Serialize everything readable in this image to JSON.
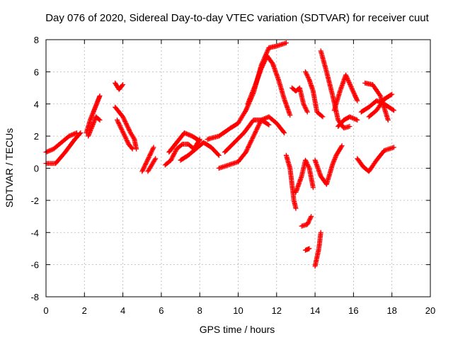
{
  "chart_data": {
    "type": "scatter",
    "title": "Day 076 of 2020, Sidereal Day-to-day VTEC variation (SDTVAR) for receiver cuut",
    "xlabel": "GPS time / hours",
    "ylabel": "SDTVAR / TECUs",
    "xlim": [
      0,
      20
    ],
    "ylim": [
      -8,
      8
    ],
    "xticks": [
      "0",
      "2",
      "4",
      "6",
      "8",
      "10",
      "12",
      "14",
      "16",
      "18",
      "20"
    ],
    "yticks": [
      "-8",
      "-6",
      "-4",
      "-2",
      "0",
      "2",
      "4",
      "6",
      "8"
    ],
    "grid": true,
    "marker": "plus",
    "color": "#ff0000",
    "tracks": [
      {
        "name": "t01",
        "points": [
          [
            0.0,
            1.0
          ],
          [
            0.4,
            1.2
          ],
          [
            0.8,
            1.6
          ],
          [
            1.2,
            2.0
          ],
          [
            1.6,
            2.2
          ]
        ]
      },
      {
        "name": "t02",
        "points": [
          [
            0.0,
            0.3
          ],
          [
            0.5,
            0.3
          ],
          [
            1.0,
            1.0
          ],
          [
            1.5,
            1.8
          ],
          [
            1.8,
            2.2
          ]
        ]
      },
      {
        "name": "t03",
        "points": [
          [
            2.1,
            2.2
          ],
          [
            2.3,
            3.0
          ],
          [
            2.5,
            3.6
          ],
          [
            2.7,
            4.2
          ],
          [
            2.8,
            4.5
          ]
        ]
      },
      {
        "name": "t04",
        "points": [
          [
            2.2,
            2.0
          ],
          [
            2.4,
            2.6
          ],
          [
            2.6,
            3.2
          ],
          [
            2.8,
            3.0
          ]
        ]
      },
      {
        "name": "t05",
        "points": [
          [
            3.6,
            5.3
          ],
          [
            3.8,
            4.9
          ],
          [
            4.0,
            5.2
          ]
        ]
      },
      {
        "name": "t06",
        "points": [
          [
            3.6,
            3.8
          ],
          [
            3.8,
            3.5
          ],
          [
            4.0,
            3.2
          ],
          [
            4.2,
            2.7
          ],
          [
            4.4,
            2.2
          ],
          [
            4.6,
            1.8
          ],
          [
            4.7,
            1.2
          ]
        ]
      },
      {
        "name": "t07",
        "points": [
          [
            3.7,
            3.0
          ],
          [
            3.9,
            2.5
          ],
          [
            4.1,
            2.0
          ],
          [
            4.3,
            1.5
          ],
          [
            4.5,
            1.2
          ]
        ]
      },
      {
        "name": "t08",
        "points": [
          [
            5.0,
            -0.2
          ],
          [
            5.2,
            0.3
          ],
          [
            5.4,
            0.8
          ],
          [
            5.6,
            1.3
          ]
        ]
      },
      {
        "name": "t09",
        "points": [
          [
            5.3,
            -0.2
          ],
          [
            5.5,
            0.2
          ],
          [
            5.7,
            0.6
          ]
        ]
      },
      {
        "name": "t10",
        "points": [
          [
            6.2,
            0.2
          ],
          [
            6.5,
            0.5
          ],
          [
            6.8,
            1.2
          ],
          [
            7.1,
            1.5
          ],
          [
            7.4,
            1.5
          ],
          [
            7.7,
            1.2
          ],
          [
            8.0,
            1.8
          ]
        ]
      },
      {
        "name": "t11",
        "points": [
          [
            6.4,
            1.0
          ],
          [
            6.8,
            1.6
          ],
          [
            7.2,
            2.2
          ],
          [
            7.6,
            2.0
          ],
          [
            8.0,
            1.7
          ]
        ]
      },
      {
        "name": "t12",
        "points": [
          [
            7.0,
            0.5
          ],
          [
            7.4,
            0.8
          ],
          [
            7.8,
            1.2
          ],
          [
            8.2,
            1.6
          ],
          [
            8.6,
            1.3
          ],
          [
            9.0,
            0.8
          ]
        ]
      },
      {
        "name": "t13",
        "points": [
          [
            8.4,
            1.8
          ],
          [
            9.0,
            2.0
          ],
          [
            9.6,
            2.5
          ],
          [
            10.0,
            2.8
          ],
          [
            10.4,
            3.6
          ],
          [
            10.8,
            4.7
          ],
          [
            11.2,
            6.4
          ],
          [
            11.6,
            7.5
          ],
          [
            12.0,
            7.6
          ],
          [
            12.5,
            7.8
          ]
        ]
      },
      {
        "name": "t14",
        "points": [
          [
            9.0,
            0.0
          ],
          [
            9.5,
            0.2
          ],
          [
            10.0,
            0.4
          ],
          [
            10.4,
            1.0
          ],
          [
            10.8,
            2.0
          ],
          [
            11.2,
            3.0
          ],
          [
            11.6,
            3.2
          ],
          [
            12.0,
            2.8
          ],
          [
            12.4,
            2.2
          ]
        ]
      },
      {
        "name": "t15",
        "points": [
          [
            9.3,
            1.0
          ],
          [
            9.8,
            1.6
          ],
          [
            10.3,
            2.2
          ],
          [
            10.8,
            3.0
          ],
          [
            11.2,
            3.0
          ],
          [
            11.6,
            2.7
          ]
        ]
      },
      {
        "name": "t16",
        "points": [
          [
            10.5,
            4.0
          ],
          [
            10.9,
            5.2
          ],
          [
            11.2,
            6.2
          ],
          [
            11.5,
            7.0
          ],
          [
            11.8,
            6.5
          ],
          [
            12.1,
            5.5
          ],
          [
            12.4,
            4.3
          ],
          [
            12.7,
            3.3
          ]
        ]
      },
      {
        "name": "t17",
        "points": [
          [
            12.5,
            0.8
          ],
          [
            12.7,
            0.0
          ],
          [
            12.9,
            -2.0
          ],
          [
            13.0,
            -2.5
          ]
        ]
      },
      {
        "name": "t18",
        "points": [
          [
            12.8,
            5.0
          ],
          [
            13.0,
            4.8
          ],
          [
            13.2,
            5.0
          ],
          [
            13.4,
            4.0
          ],
          [
            13.6,
            3.5
          ]
        ]
      },
      {
        "name": "t19",
        "points": [
          [
            13.0,
            -1.5
          ],
          [
            13.3,
            -0.5
          ],
          [
            13.5,
            0.5
          ],
          [
            13.7,
            0.0
          ],
          [
            13.9,
            -1.2
          ]
        ]
      },
      {
        "name": "t20",
        "points": [
          [
            13.3,
            -3.6
          ],
          [
            13.6,
            -3.5
          ],
          [
            13.8,
            -3.0
          ]
        ]
      },
      {
        "name": "t21",
        "points": [
          [
            13.5,
            -5.1
          ],
          [
            13.7,
            -5.0
          ]
        ]
      },
      {
        "name": "t22",
        "points": [
          [
            14.0,
            -6.1
          ],
          [
            14.2,
            -5.0
          ],
          [
            14.3,
            -4.0
          ]
        ]
      },
      {
        "name": "t23",
        "points": [
          [
            13.5,
            6.0
          ],
          [
            13.7,
            5.5
          ],
          [
            13.9,
            4.8
          ],
          [
            14.1,
            3.5
          ],
          [
            14.4,
            3.2
          ]
        ]
      },
      {
        "name": "t24",
        "points": [
          [
            14.0,
            0.5
          ],
          [
            14.3,
            -0.5
          ],
          [
            14.6,
            -1.0
          ],
          [
            14.9,
            0.2
          ],
          [
            15.1,
            0.8
          ],
          [
            15.4,
            1.4
          ]
        ]
      },
      {
        "name": "t25",
        "points": [
          [
            14.3,
            7.3
          ],
          [
            14.6,
            6.0
          ],
          [
            14.9,
            4.6
          ],
          [
            15.2,
            3.0
          ],
          [
            15.5,
            2.5
          ],
          [
            15.8,
            2.6
          ]
        ]
      },
      {
        "name": "t26",
        "points": [
          [
            15.0,
            3.6
          ],
          [
            15.3,
            4.8
          ],
          [
            15.6,
            5.8
          ],
          [
            15.9,
            5.0
          ],
          [
            16.2,
            4.2
          ]
        ]
      },
      {
        "name": "t27",
        "points": [
          [
            15.2,
            2.6
          ],
          [
            15.5,
            3.0
          ],
          [
            15.8,
            3.2
          ],
          [
            16.2,
            3.0
          ]
        ]
      },
      {
        "name": "t28",
        "points": [
          [
            16.2,
            0.6
          ],
          [
            16.5,
            0.1
          ],
          [
            16.8,
            -0.2
          ],
          [
            17.2,
            0.5
          ],
          [
            17.6,
            1.1
          ],
          [
            18.1,
            1.3
          ]
        ]
      },
      {
        "name": "t29",
        "points": [
          [
            16.4,
            3.5
          ],
          [
            16.8,
            3.8
          ],
          [
            17.2,
            4.2
          ],
          [
            17.6,
            4.0
          ],
          [
            18.1,
            3.6
          ]
        ]
      },
      {
        "name": "t30",
        "points": [
          [
            16.6,
            5.3
          ],
          [
            17.0,
            5.2
          ],
          [
            17.4,
            4.5
          ],
          [
            17.8,
            3.0
          ]
        ]
      },
      {
        "name": "t31",
        "points": [
          [
            16.8,
            3.2
          ],
          [
            17.2,
            3.6
          ],
          [
            17.6,
            4.3
          ],
          [
            18.0,
            4.6
          ]
        ]
      }
    ]
  }
}
